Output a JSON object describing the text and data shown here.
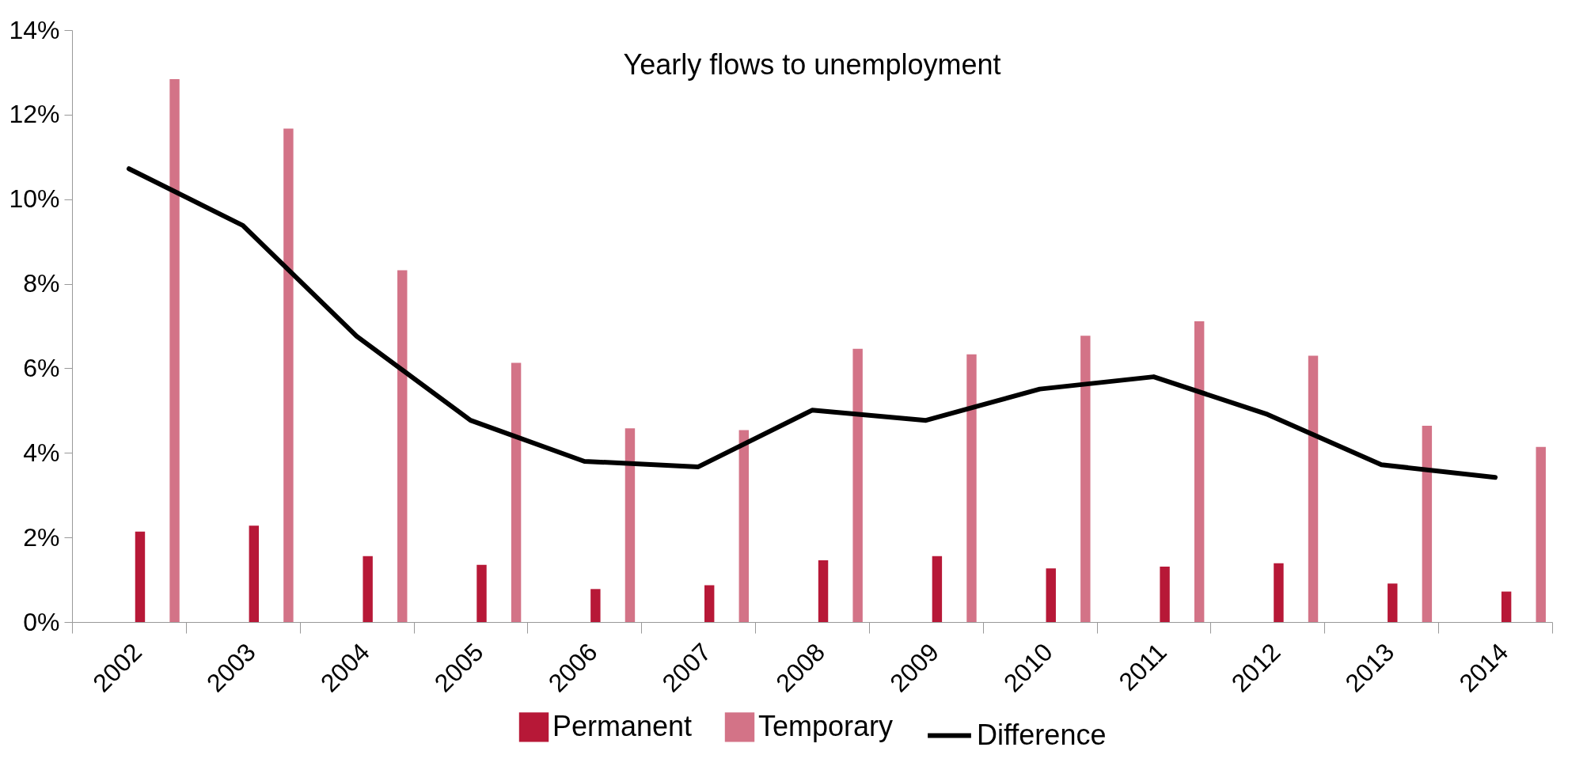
{
  "chart_data": {
    "type": "bar",
    "title": "Yearly flows to unemployment",
    "categories": [
      "2002",
      "2003",
      "2004",
      "2005",
      "2006",
      "2007",
      "2008",
      "2009",
      "2010",
      "2011",
      "2012",
      "2013",
      "2014"
    ],
    "series": [
      {
        "name": "Permanent",
        "color": "#b71837",
        "values": [
          2.14,
          2.28,
          1.56,
          1.35,
          0.78,
          0.87,
          1.46,
          1.56,
          1.27,
          1.31,
          1.39,
          0.91,
          0.72
        ]
      },
      {
        "name": "Temporary",
        "color": "#d37387",
        "values": [
          12.84,
          11.67,
          8.32,
          6.13,
          4.58,
          4.54,
          6.46,
          6.33,
          6.77,
          7.11,
          6.3,
          4.64,
          4.14
        ]
      },
      {
        "name": "Difference",
        "type": "line",
        "color": "#000000",
        "values": [
          10.72,
          9.38,
          6.76,
          4.77,
          3.8,
          3.67,
          5.01,
          4.77,
          5.51,
          5.8,
          4.91,
          3.72,
          3.42
        ]
      }
    ],
    "ylim": [
      0,
      14
    ],
    "yticks": [
      {
        "value": 0,
        "label": "0%"
      },
      {
        "value": 2,
        "label": "2%"
      },
      {
        "value": 4,
        "label": "4%"
      },
      {
        "value": 6,
        "label": "6%"
      },
      {
        "value": 8,
        "label": "8%"
      },
      {
        "value": 10,
        "label": "10%"
      },
      {
        "value": 12,
        "label": "12%"
      },
      {
        "value": 14,
        "label": "14%"
      }
    ],
    "grid": false,
    "legend": "bottom",
    "marker": "none",
    "line_style": "solid"
  }
}
